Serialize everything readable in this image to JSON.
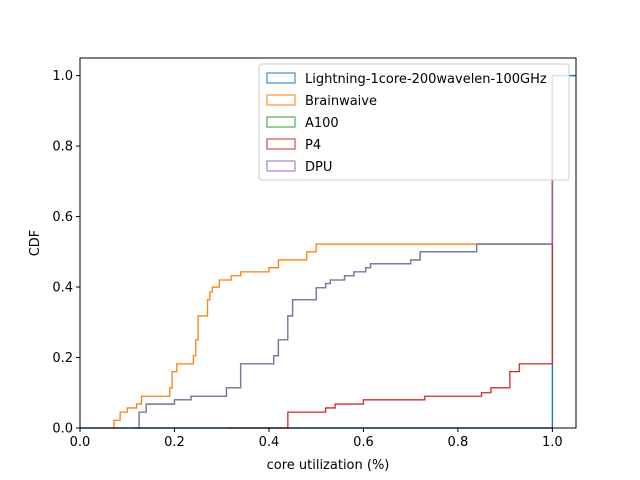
{
  "chart_data": {
    "type": "step",
    "xlabel": "core utilization (%)",
    "ylabel": "CDF",
    "xlim": [
      0.0,
      1.05
    ],
    "ylim": [
      0.0,
      1.05
    ],
    "xticks": [
      "0.0",
      "0.2",
      "0.4",
      "0.6",
      "0.8",
      "1.0"
    ],
    "yticks": [
      "0.0",
      "0.2",
      "0.4",
      "0.6",
      "0.8",
      "1.0"
    ],
    "grid": false,
    "legend_position": "top-right",
    "series": [
      {
        "name": "Lightning-1core-200wavelen-100GHz",
        "color": "#1f77b4",
        "x": [
          0.0,
          1.0,
          1.05
        ],
        "y": [
          0.0,
          1.0,
          1.0
        ]
      },
      {
        "name": "Brainwaive",
        "color": "#ff7f0e",
        "x": [
          0.062,
          0.072,
          0.085,
          0.1,
          0.12,
          0.13,
          0.165,
          0.19,
          0.195,
          0.205,
          0.235,
          0.24,
          0.245,
          0.25,
          0.27,
          0.275,
          0.28,
          0.295,
          0.31,
          0.32,
          0.34,
          0.4,
          0.42,
          0.48,
          0.5,
          0.84,
          1.0
        ],
        "y": [
          0.0,
          0.022,
          0.045,
          0.057,
          0.068,
          0.09,
          0.09,
          0.114,
          0.16,
          0.182,
          0.182,
          0.205,
          0.25,
          0.318,
          0.364,
          0.386,
          0.4,
          0.42,
          0.42,
          0.432,
          0.443,
          0.455,
          0.477,
          0.5,
          0.522,
          0.522,
          1.0
        ]
      },
      {
        "name": "A100",
        "color": "#2ca02c",
        "x": [
          0.115,
          0.125,
          0.14,
          0.2,
          0.235,
          0.31,
          0.32,
          0.34,
          0.41,
          0.42,
          0.44,
          0.45,
          0.5,
          0.52,
          0.53,
          0.56,
          0.58,
          0.605,
          0.615,
          0.7,
          0.72,
          0.785,
          0.84,
          1.0
        ],
        "y": [
          0.0,
          0.045,
          0.068,
          0.08,
          0.09,
          0.114,
          0.114,
          0.182,
          0.205,
          0.25,
          0.318,
          0.364,
          0.398,
          0.41,
          0.42,
          0.432,
          0.443,
          0.455,
          0.466,
          0.477,
          0.5,
          0.5,
          0.522,
          1.0
        ]
      },
      {
        "name": "P4",
        "color": "#d62728",
        "x": [
          0.31,
          0.33,
          0.44,
          0.52,
          0.54,
          0.6,
          0.73,
          0.765,
          0.85,
          0.87,
          0.91,
          0.93,
          0.98,
          1.0
        ],
        "y": [
          0.0,
          0.0,
          0.045,
          0.057,
          0.068,
          0.08,
          0.09,
          0.09,
          0.1,
          0.114,
          0.16,
          0.182,
          0.182,
          1.0
        ]
      },
      {
        "name": "DPU",
        "color": "#9467bd",
        "x": [
          0.115,
          0.125,
          0.14,
          0.2,
          0.235,
          0.31,
          0.32,
          0.34,
          0.41,
          0.42,
          0.44,
          0.45,
          0.5,
          0.52,
          0.53,
          0.56,
          0.58,
          0.605,
          0.615,
          0.7,
          0.72,
          0.785,
          0.84,
          1.0
        ],
        "y": [
          0.0,
          0.045,
          0.068,
          0.08,
          0.09,
          0.114,
          0.114,
          0.182,
          0.205,
          0.25,
          0.318,
          0.364,
          0.398,
          0.41,
          0.42,
          0.432,
          0.443,
          0.455,
          0.466,
          0.477,
          0.5,
          0.5,
          0.522,
          1.0
        ]
      }
    ]
  }
}
